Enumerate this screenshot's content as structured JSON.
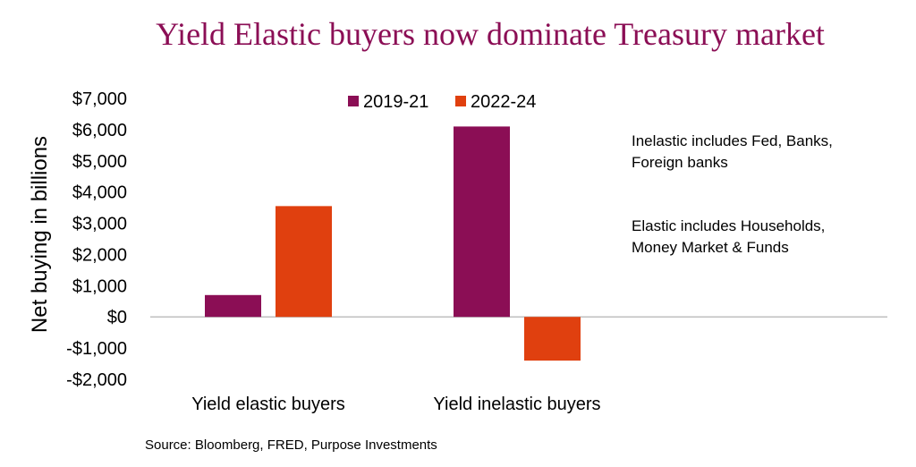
{
  "chart_data": {
    "type": "bar",
    "title": "Yield Elastic buyers now dominate Treasury market",
    "ylabel": "Net buying in billions",
    "xlabel": "",
    "categories": [
      "Yield elastic buyers",
      "Yield inelastic buyers"
    ],
    "series": [
      {
        "name": "2019-21",
        "values": [
          700,
          6100
        ],
        "color": "#8B0E55"
      },
      {
        "name": "2022-24",
        "values": [
          3550,
          -1400
        ],
        "color": "#E0400F"
      }
    ],
    "ylim": [
      -2000,
      7000
    ],
    "yticks": [
      7000,
      6000,
      5000,
      4000,
      3000,
      2000,
      1000,
      0,
      -1000,
      -2000
    ],
    "ytick_labels": [
      "$7,000",
      "$6,000",
      "$5,000",
      "$4,000",
      "$3,000",
      "$2,000",
      "$1,000",
      "$0",
      "-$1,000",
      "-$2,000"
    ],
    "grid": false,
    "legend_position": "top",
    "annotations": [
      {
        "lines": [
          "Inelastic includes Fed, Banks,",
          "Foreign banks"
        ]
      },
      {
        "lines": [
          "Elastic includes Households,",
          "Money Market & Funds"
        ]
      }
    ],
    "source": "Source: Bloomberg, FRED, Purpose Investments"
  },
  "colors": {
    "title": "#8B0E55",
    "zero_line": "#BFBFBF"
  }
}
